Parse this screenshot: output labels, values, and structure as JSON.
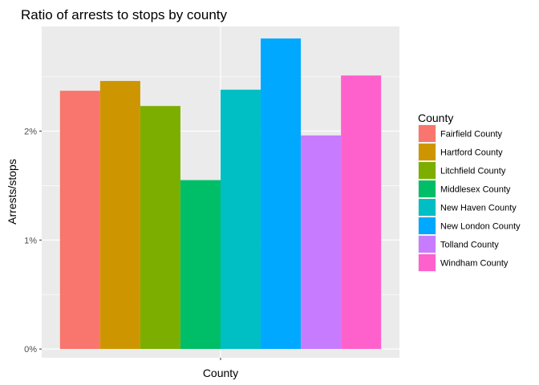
{
  "chart_data": {
    "type": "bar",
    "title": "Ratio of arrests to stops by county",
    "xlabel": "County",
    "ylabel": "Arrests/stops",
    "x_tick_labels": [
      ""
    ],
    "y_ticks": [
      0,
      0.01,
      0.02
    ],
    "y_tick_labels": [
      "0%",
      "1%",
      "2%"
    ],
    "ylim": [
      -0.0008,
      0.0296
    ],
    "grid": true,
    "legend_title": "County",
    "legend_position": "right",
    "categories": [
      "Fairfield County",
      "Hartford County",
      "Litchfield County",
      "Middlesex County",
      "New Haven County",
      "New London County",
      "Tolland County",
      "Windham County"
    ],
    "values": [
      0.0237,
      0.0246,
      0.0223,
      0.0155,
      0.0238,
      0.0285,
      0.0196,
      0.0251
    ],
    "colors": [
      "#F8766D",
      "#CD9600",
      "#7CAE00",
      "#00BE67",
      "#00BFC4",
      "#00A9FF",
      "#C77CFF",
      "#FF61CC"
    ]
  }
}
